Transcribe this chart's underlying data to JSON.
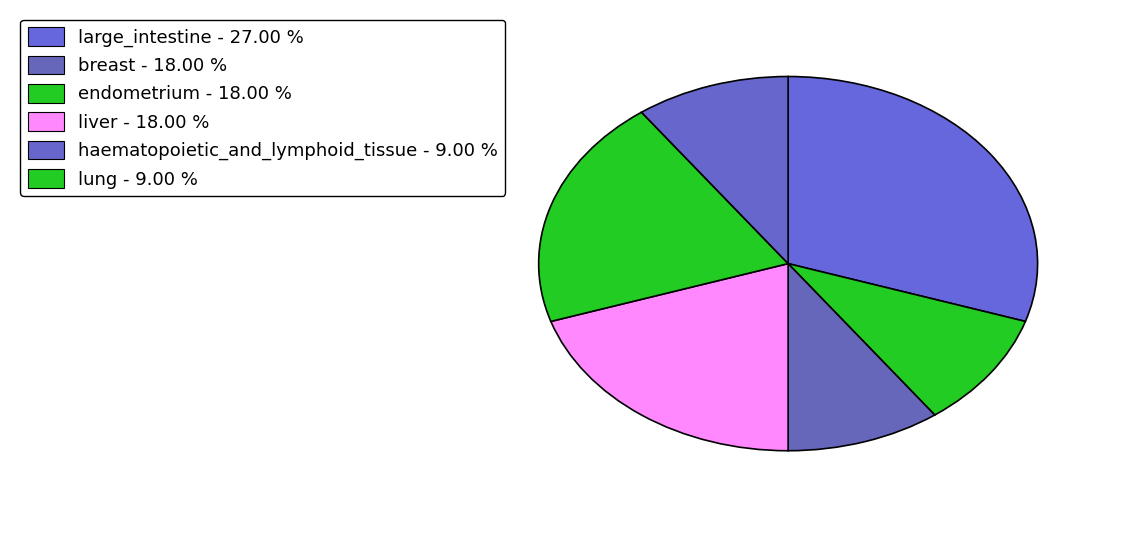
{
  "labels": [
    "large_intestine - 27.00 %",
    "breast - 18.00 %",
    "endometrium - 18.00 %",
    "liver - 18.00 %",
    "haematopoietic_and_lymphoid_tissue - 9.00 %",
    "lung - 9.00 %"
  ],
  "sizes": [
    27,
    18,
    18,
    18,
    9,
    9
  ],
  "colors": [
    "#6666dd",
    "#6666dd",
    "#22cc22",
    "#ff88cc",
    "#6666dd",
    "#22cc22"
  ],
  "pie_colors": [
    "#6666dd",
    "#22cc22",
    "#6666cc",
    "#ff88ff",
    "#22cc22",
    "#6666dd"
  ],
  "startangle": 90,
  "figsize": [
    11.34,
    5.38
  ],
  "dpi": 100,
  "legend_fontsize": 13,
  "background_color": "#ffffff"
}
